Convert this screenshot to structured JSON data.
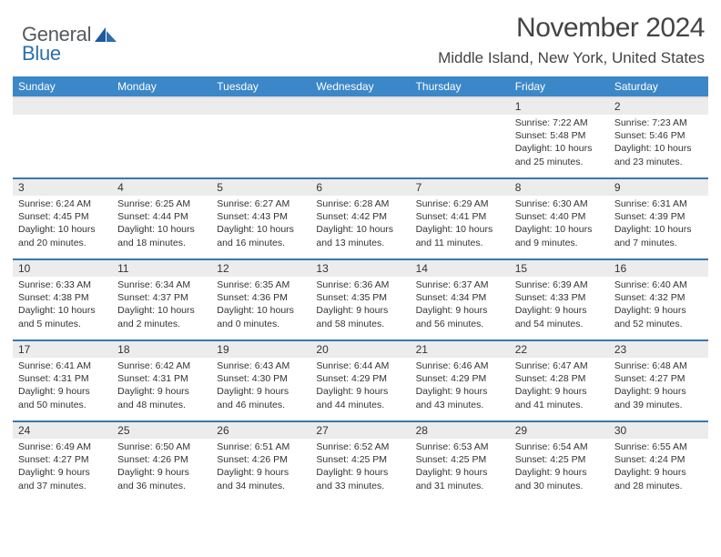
{
  "brand": {
    "word1": "General",
    "word2": "Blue",
    "color_general": "#555a5e",
    "color_blue": "#2f6fa8",
    "icon_fill": "#1e5a9c"
  },
  "title": "November 2024",
  "location": "Middle Island, New York, United States",
  "header_bg": "#3b87c8",
  "header_text": "#ffffff",
  "daynum_bg": "#ececec",
  "divider_color": "#3b78b0",
  "text_color": "#333333",
  "days_of_week": [
    "Sunday",
    "Monday",
    "Tuesday",
    "Wednesday",
    "Thursday",
    "Friday",
    "Saturday"
  ],
  "weeks": [
    [
      null,
      null,
      null,
      null,
      null,
      {
        "n": "1",
        "sunrise": "Sunrise: 7:22 AM",
        "sunset": "Sunset: 5:48 PM",
        "daylight": "Daylight: 10 hours and 25 minutes."
      },
      {
        "n": "2",
        "sunrise": "Sunrise: 7:23 AM",
        "sunset": "Sunset: 5:46 PM",
        "daylight": "Daylight: 10 hours and 23 minutes."
      }
    ],
    [
      {
        "n": "3",
        "sunrise": "Sunrise: 6:24 AM",
        "sunset": "Sunset: 4:45 PM",
        "daylight": "Daylight: 10 hours and 20 minutes."
      },
      {
        "n": "4",
        "sunrise": "Sunrise: 6:25 AM",
        "sunset": "Sunset: 4:44 PM",
        "daylight": "Daylight: 10 hours and 18 minutes."
      },
      {
        "n": "5",
        "sunrise": "Sunrise: 6:27 AM",
        "sunset": "Sunset: 4:43 PM",
        "daylight": "Daylight: 10 hours and 16 minutes."
      },
      {
        "n": "6",
        "sunrise": "Sunrise: 6:28 AM",
        "sunset": "Sunset: 4:42 PM",
        "daylight": "Daylight: 10 hours and 13 minutes."
      },
      {
        "n": "7",
        "sunrise": "Sunrise: 6:29 AM",
        "sunset": "Sunset: 4:41 PM",
        "daylight": "Daylight: 10 hours and 11 minutes."
      },
      {
        "n": "8",
        "sunrise": "Sunrise: 6:30 AM",
        "sunset": "Sunset: 4:40 PM",
        "daylight": "Daylight: 10 hours and 9 minutes."
      },
      {
        "n": "9",
        "sunrise": "Sunrise: 6:31 AM",
        "sunset": "Sunset: 4:39 PM",
        "daylight": "Daylight: 10 hours and 7 minutes."
      }
    ],
    [
      {
        "n": "10",
        "sunrise": "Sunrise: 6:33 AM",
        "sunset": "Sunset: 4:38 PM",
        "daylight": "Daylight: 10 hours and 5 minutes."
      },
      {
        "n": "11",
        "sunrise": "Sunrise: 6:34 AM",
        "sunset": "Sunset: 4:37 PM",
        "daylight": "Daylight: 10 hours and 2 minutes."
      },
      {
        "n": "12",
        "sunrise": "Sunrise: 6:35 AM",
        "sunset": "Sunset: 4:36 PM",
        "daylight": "Daylight: 10 hours and 0 minutes."
      },
      {
        "n": "13",
        "sunrise": "Sunrise: 6:36 AM",
        "sunset": "Sunset: 4:35 PM",
        "daylight": "Daylight: 9 hours and 58 minutes."
      },
      {
        "n": "14",
        "sunrise": "Sunrise: 6:37 AM",
        "sunset": "Sunset: 4:34 PM",
        "daylight": "Daylight: 9 hours and 56 minutes."
      },
      {
        "n": "15",
        "sunrise": "Sunrise: 6:39 AM",
        "sunset": "Sunset: 4:33 PM",
        "daylight": "Daylight: 9 hours and 54 minutes."
      },
      {
        "n": "16",
        "sunrise": "Sunrise: 6:40 AM",
        "sunset": "Sunset: 4:32 PM",
        "daylight": "Daylight: 9 hours and 52 minutes."
      }
    ],
    [
      {
        "n": "17",
        "sunrise": "Sunrise: 6:41 AM",
        "sunset": "Sunset: 4:31 PM",
        "daylight": "Daylight: 9 hours and 50 minutes."
      },
      {
        "n": "18",
        "sunrise": "Sunrise: 6:42 AM",
        "sunset": "Sunset: 4:31 PM",
        "daylight": "Daylight: 9 hours and 48 minutes."
      },
      {
        "n": "19",
        "sunrise": "Sunrise: 6:43 AM",
        "sunset": "Sunset: 4:30 PM",
        "daylight": "Daylight: 9 hours and 46 minutes."
      },
      {
        "n": "20",
        "sunrise": "Sunrise: 6:44 AM",
        "sunset": "Sunset: 4:29 PM",
        "daylight": "Daylight: 9 hours and 44 minutes."
      },
      {
        "n": "21",
        "sunrise": "Sunrise: 6:46 AM",
        "sunset": "Sunset: 4:29 PM",
        "daylight": "Daylight: 9 hours and 43 minutes."
      },
      {
        "n": "22",
        "sunrise": "Sunrise: 6:47 AM",
        "sunset": "Sunset: 4:28 PM",
        "daylight": "Daylight: 9 hours and 41 minutes."
      },
      {
        "n": "23",
        "sunrise": "Sunrise: 6:48 AM",
        "sunset": "Sunset: 4:27 PM",
        "daylight": "Daylight: 9 hours and 39 minutes."
      }
    ],
    [
      {
        "n": "24",
        "sunrise": "Sunrise: 6:49 AM",
        "sunset": "Sunset: 4:27 PM",
        "daylight": "Daylight: 9 hours and 37 minutes."
      },
      {
        "n": "25",
        "sunrise": "Sunrise: 6:50 AM",
        "sunset": "Sunset: 4:26 PM",
        "daylight": "Daylight: 9 hours and 36 minutes."
      },
      {
        "n": "26",
        "sunrise": "Sunrise: 6:51 AM",
        "sunset": "Sunset: 4:26 PM",
        "daylight": "Daylight: 9 hours and 34 minutes."
      },
      {
        "n": "27",
        "sunrise": "Sunrise: 6:52 AM",
        "sunset": "Sunset: 4:25 PM",
        "daylight": "Daylight: 9 hours and 33 minutes."
      },
      {
        "n": "28",
        "sunrise": "Sunrise: 6:53 AM",
        "sunset": "Sunset: 4:25 PM",
        "daylight": "Daylight: 9 hours and 31 minutes."
      },
      {
        "n": "29",
        "sunrise": "Sunrise: 6:54 AM",
        "sunset": "Sunset: 4:25 PM",
        "daylight": "Daylight: 9 hours and 30 minutes."
      },
      {
        "n": "30",
        "sunrise": "Sunrise: 6:55 AM",
        "sunset": "Sunset: 4:24 PM",
        "daylight": "Daylight: 9 hours and 28 minutes."
      }
    ]
  ]
}
